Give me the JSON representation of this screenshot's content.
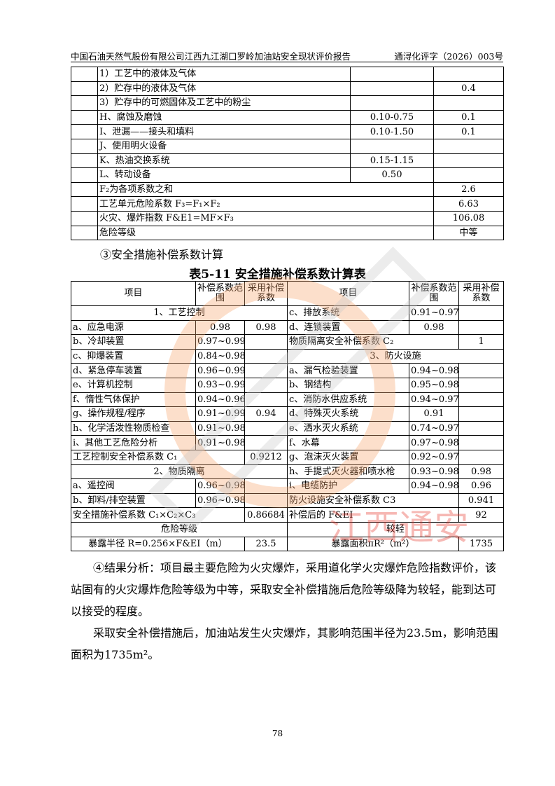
{
  "header": {
    "title": "中国石油天然气股份有限公司江西九江湖口罗岭加油站安全现状评价报告",
    "doc_no": "通浔化评字（2026）003号"
  },
  "table1": {
    "rows": [
      [
        "",
        "1）工艺中的液体及气体",
        "",
        ""
      ],
      [
        "",
        "2）贮存中的液体及气体",
        "",
        "0.4"
      ],
      [
        "",
        "3）贮存中的可燃固体及工艺中的粉尘",
        "",
        ""
      ],
      [
        "",
        "H、腐蚀及磨蚀",
        "0.10-0.75",
        "0.1"
      ],
      [
        "",
        "I、泄漏——接头和填料",
        "0.10-1.50",
        "0.1"
      ],
      [
        "",
        "J、使用明火设备",
        "",
        ""
      ],
      [
        "",
        "K、热油交换系统",
        "0.15-1.15",
        ""
      ],
      [
        "",
        "L、转动设备",
        "0.50",
        ""
      ]
    ],
    "summary": [
      [
        "F₂为各项系数之和",
        "2.6"
      ],
      [
        "工艺单元危险系数 F₃=F₁×F₂",
        "6.63"
      ],
      [
        "火灾、爆炸指数 F&E1=MF×F₃",
        "106.08"
      ],
      [
        "危险等级",
        "中等"
      ]
    ]
  },
  "section_heading": "③安全措施补偿系数计算",
  "table2": {
    "caption": "表5-11 安全措施补偿系数计算表",
    "header": [
      "项目",
      "补偿系数范围",
      "采用补偿系数",
      "项目",
      "补偿系数范围",
      "采用补偿系数"
    ],
    "rows": [
      [
        [
          "1、工艺控制",
          3,
          "c"
        ],
        [
          "c、排放系统"
        ],
        [
          "0.91~0.97"
        ],
        [
          ""
        ]
      ],
      [
        [
          "a、应急电源"
        ],
        [
          "0.98"
        ],
        [
          "0.98"
        ],
        [
          "d、连锁装置"
        ],
        [
          "0.98"
        ],
        [
          ""
        ]
      ],
      [
        [
          "b、冷却装置"
        ],
        [
          "0.97~0.99"
        ],
        [
          ""
        ],
        [
          "物质隔离安全补偿系数 C₂",
          2
        ],
        [
          "1"
        ]
      ],
      [
        [
          "c、抑爆装置"
        ],
        [
          "0.84~0.98"
        ],
        [
          ""
        ],
        [
          "3、防火设施",
          3,
          "c"
        ]
      ],
      [
        [
          "d、紧急停车装置"
        ],
        [
          "0.96~0.99"
        ],
        [
          ""
        ],
        [
          "a、漏气检验装置"
        ],
        [
          "0.94~0.98"
        ],
        [
          ""
        ]
      ],
      [
        [
          "e、计算机控制"
        ],
        [
          "0.93~0.99"
        ],
        [
          ""
        ],
        [
          "b、钢结构"
        ],
        [
          "0.95~0.98"
        ],
        [
          ""
        ]
      ],
      [
        [
          "f、惰性气体保护"
        ],
        [
          "0.94~0.96"
        ],
        [
          ""
        ],
        [
          "c、消防水供应系统"
        ],
        [
          "0.94~0.97"
        ],
        [
          ""
        ]
      ],
      [
        [
          "g、操作规程/程序"
        ],
        [
          "0.91~0.99"
        ],
        [
          "0.94"
        ],
        [
          "d、特殊灭火系统"
        ],
        [
          "0.91"
        ],
        [
          ""
        ]
      ],
      [
        [
          "h、化学活泼性物质检查"
        ],
        [
          "0.91~0.98"
        ],
        [
          ""
        ],
        [
          "e、洒水灭火系统"
        ],
        [
          "0.74~0.97"
        ],
        [
          ""
        ]
      ],
      [
        [
          "i、其他工艺危险分析"
        ],
        [
          "0.91~0.98"
        ],
        [
          ""
        ],
        [
          "f、水幕"
        ],
        [
          "0.97~0.98"
        ],
        [
          ""
        ]
      ],
      [
        [
          "工艺控制安全补偿系数 C₁",
          2
        ],
        [
          "0.9212"
        ],
        [
          "g、泡沫灭火装置"
        ],
        [
          "0.92~0.97"
        ],
        [
          ""
        ]
      ],
      [
        [
          "2、物质隔离",
          3,
          "c"
        ],
        [
          "h、手提式灭火器和喷水枪"
        ],
        [
          "0.93~0.98"
        ],
        [
          "0.98"
        ]
      ],
      [
        [
          "a、遥控阀"
        ],
        [
          "0.96~0.98"
        ],
        [
          ""
        ],
        [
          "i、电缆防护"
        ],
        [
          "0.94~0.98"
        ],
        [
          "0.96"
        ]
      ],
      [
        [
          "b、卸料/排空装置"
        ],
        [
          "0.96~0.98"
        ],
        [
          ""
        ],
        [
          "防火设施安全补偿系数 C3",
          2
        ],
        [
          "0.941"
        ]
      ],
      [
        [
          "安全措施补偿系数 C₁×C₂×C₃",
          2
        ],
        [
          "0.86684"
        ],
        [
          "补偿后的 F&EI",
          2
        ],
        [
          "92"
        ]
      ],
      [
        [
          "危险等级",
          3,
          "c"
        ],
        [
          "较轻",
          3,
          "c"
        ]
      ],
      [
        [
          "暴露半径 R=0.256×F&EI（m）",
          2,
          "c"
        ],
        [
          "23.5"
        ],
        [
          "暴露面积πR²（m²）",
          2,
          "c"
        ],
        [
          "1735"
        ]
      ]
    ]
  },
  "paragraphs": [
    "④结果分析：项目最主要危险为火灾爆炸，采用道化学火灾爆炸危险指数评价，该站固有的火灾爆炸危险等级为中等，采取安全补偿措施后危险等级降为较轻，能到达可以接受的程度。",
    "采取安全补偿措施后，加油站发生火灾爆炸，其影响范围半径为23.5m，影响范围面积为1735m²。"
  ],
  "page_number": "78",
  "watermark": {
    "text": "江西通安",
    "color_orange": "#f5a36b",
    "color_red": "#e8362a",
    "color_gray": "#c8c8c8"
  }
}
